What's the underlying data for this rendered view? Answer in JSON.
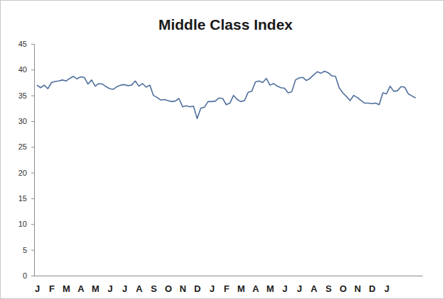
{
  "chart_data": {
    "type": "line",
    "title": "Middle Class Index",
    "color": "#4f6f9c",
    "categories": [
      "J",
      null,
      null,
      null,
      "F",
      null,
      null,
      null,
      "M",
      null,
      null,
      null,
      "A",
      null,
      null,
      null,
      "M",
      null,
      null,
      null,
      "J",
      null,
      null,
      null,
      "J",
      null,
      null,
      null,
      "A",
      null,
      null,
      null,
      "S",
      null,
      null,
      null,
      "O",
      null,
      null,
      null,
      "N",
      null,
      null,
      null,
      "D",
      null,
      null,
      null,
      "J",
      null,
      null,
      null,
      "F",
      null,
      null,
      null,
      "M",
      null,
      null,
      null,
      "A",
      null,
      null,
      null,
      "M",
      null,
      null,
      null,
      "J",
      null,
      null,
      null,
      "J",
      null,
      null,
      null,
      "A",
      null,
      null,
      null,
      "S",
      null,
      null,
      null,
      "O",
      null,
      null,
      null,
      "N",
      null,
      null,
      null,
      "D",
      null,
      null,
      null,
      "J",
      null,
      null,
      null,
      null,
      null,
      null,
      null,
      null
    ],
    "values": [
      37,
      36.5,
      37,
      36.3,
      37.5,
      37.7,
      37.8,
      38,
      37.8,
      38.3,
      38.7,
      38.2,
      38.6,
      38.5,
      37.2,
      38,
      36.8,
      37.3,
      37.2,
      36.7,
      36.3,
      36.2,
      36.7,
      37,
      37.1,
      36.9,
      37,
      37.8,
      36.8,
      37.3,
      36.6,
      37,
      35,
      34.6,
      34.1,
      34.2,
      34,
      33.8,
      33.9,
      34.4,
      32.8,
      33,
      32.8,
      32.9,
      30.5,
      32.5,
      32.7,
      33.8,
      33.8,
      33.9,
      34.5,
      34.4,
      33.2,
      33.5,
      35,
      34.2,
      33.8,
      34,
      35.6,
      35.8,
      37.6,
      37.8,
      37.5,
      38.3,
      37,
      37.3,
      36.8,
      36.5,
      36.4,
      35.5,
      35.7,
      38,
      38.4,
      38.5,
      37.9,
      38.3,
      39,
      39.6,
      39.3,
      39.7,
      39.4,
      38.8,
      38.7,
      36.5,
      35.5,
      34.8,
      34,
      35,
      34.6,
      34,
      33.5,
      33.5,
      33.4,
      33.5,
      33.2,
      35.5,
      35.3,
      36.8,
      35.8,
      35.9,
      36.7,
      36.6,
      35.3,
      34.9,
      34.5
    ],
    "ylim": [
      0,
      45
    ],
    "yticks": [
      0,
      5,
      10,
      15,
      20,
      25,
      30,
      35,
      40,
      45
    ],
    "grid": false
  }
}
